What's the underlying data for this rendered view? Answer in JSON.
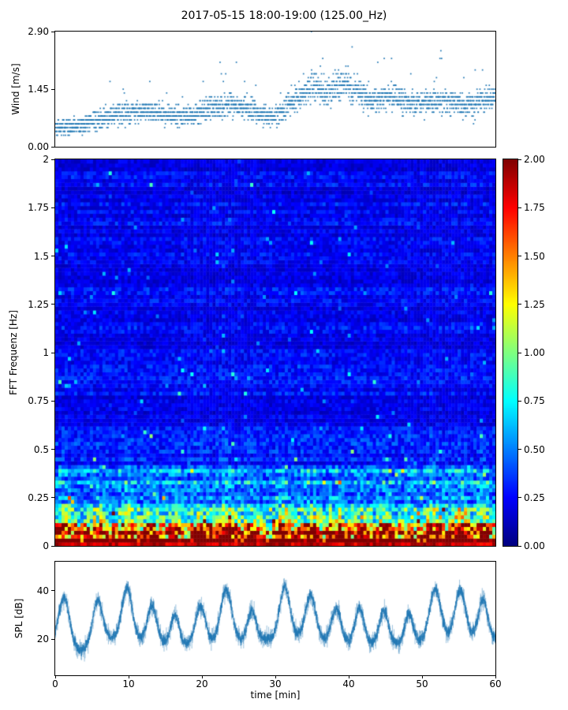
{
  "title": "2017-05-15 18:00-19:00 (125.00_Hz)",
  "chart_data": [
    {
      "type": "scatter",
      "name": "wind-speed",
      "ylabel": "Wind [m/s]",
      "ylim": [
        0,
        2.9
      ],
      "ytick_labels": [
        "0.00",
        "1.45",
        "2.90"
      ],
      "xlim": [
        0,
        60
      ],
      "marker_color": "#1f77b4",
      "points_per_min": 40,
      "quantize_step": 0.0967,
      "noise_sigma": 0.26,
      "spike_prob": 0.025,
      "seed": 42,
      "envelope": {
        "t": [
          0,
          3,
          6,
          9,
          12,
          15,
          18,
          21,
          24,
          27,
          30,
          33,
          35,
          37,
          39,
          41,
          43,
          46,
          49,
          52,
          55,
          57,
          59,
          60
        ],
        "v": [
          0.5,
          0.5,
          0.7,
          0.85,
          0.9,
          0.8,
          0.75,
          0.95,
          1.05,
          0.9,
          0.75,
          1.25,
          1.55,
          1.35,
          1.6,
          1.45,
          1.15,
          1.25,
          1.1,
          1.15,
          1.1,
          1.0,
          1.3,
          1.15
        ]
      }
    },
    {
      "type": "heatmap",
      "name": "fft-spectrogram",
      "ylabel": "FFT Frequenz [Hz]",
      "ylim": [
        0,
        2
      ],
      "ytick_labels": [
        "2",
        "1.75",
        "1.5",
        "1.25",
        "1",
        "0.75",
        "0.5",
        "0.25",
        "0"
      ],
      "xlim": [
        0,
        60
      ],
      "colormap": "jet",
      "vmin": 0,
      "vmax": 2,
      "colorbar_tick_labels": [
        "2.00",
        "1.75",
        "1.50",
        "1.25",
        "1.00",
        "0.75",
        "0.50",
        "0.25",
        "0.00"
      ],
      "n_time_bins": 140,
      "n_freq_bins": 100,
      "floor": 0.22,
      "base_amp": 1.75,
      "decay_hz": 0.13,
      "burst_gain": 0.9,
      "row_streak_prob": 0.06,
      "spike_prob": 0.015,
      "seed": 7
    },
    {
      "type": "line",
      "name": "spl",
      "ylabel": "SPL [dB]",
      "xlabel": "time [min]",
      "ylim": [
        5,
        52
      ],
      "ytick_labels": [
        "20",
        "40"
      ],
      "xlim": [
        0,
        60
      ],
      "xtick_labels": [
        "0",
        "10",
        "20",
        "30",
        "40",
        "50",
        "60"
      ],
      "line_color": "#1f77b4",
      "baseline": 19,
      "noise_sigma": 2.1,
      "samples": 3600,
      "seed": 99,
      "peaks": {
        "t": [
          1.2,
          3.5,
          5.8,
          9.8,
          13.2,
          16.3,
          19.8,
          23.3,
          26.8,
          31.3,
          34.8,
          38.3,
          41.5,
          44.8,
          48.2,
          51.8,
          55.2,
          58.3
        ],
        "amp": [
          18,
          -5,
          16,
          21,
          15,
          12,
          16,
          22,
          12,
          21,
          18,
          14,
          15,
          14,
          12,
          21,
          20,
          16
        ],
        "w": [
          1.0,
          1.3,
          0.9,
          1.0,
          0.9,
          0.8,
          1.0,
          1.1,
          0.8,
          1.0,
          1.0,
          0.9,
          0.9,
          0.9,
          0.8,
          1.1,
          1.0,
          0.9
        ]
      }
    }
  ]
}
